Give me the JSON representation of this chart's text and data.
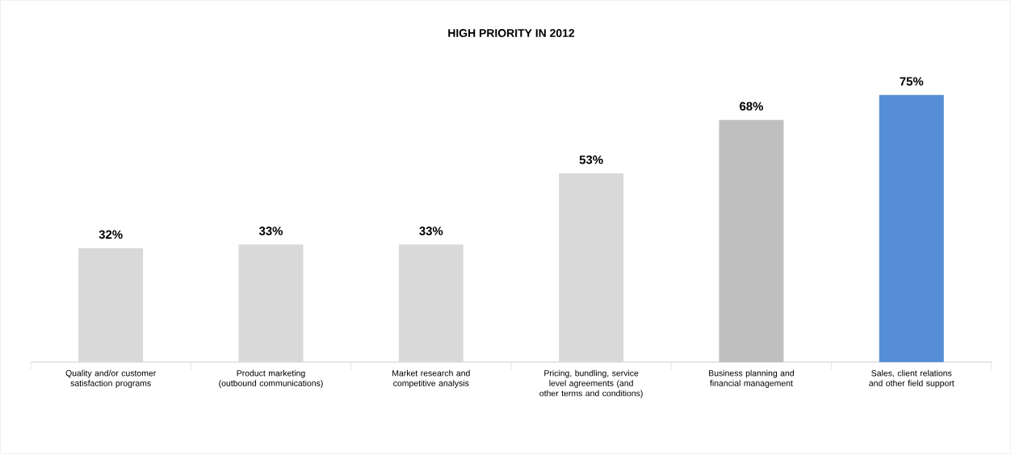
{
  "chart_data": {
    "type": "bar",
    "title": "HIGH PRIORITY IN 2012",
    "categories": [
      "Quality and/or customer satisfaction programs",
      "Product marketing (outbound communications)",
      "Market research and competitive analysis",
      "Pricing, bundling, service level agreements (and other terms and conditions)",
      "Business planning and financial management",
      "Sales, client relations and other field support"
    ],
    "values": [
      32,
      33,
      33,
      53,
      68,
      75
    ],
    "colors": [
      "#d9d9d9",
      "#d9d9d9",
      "#d9d9d9",
      "#d9d9d9",
      "#bfbfbf",
      "#558ed5"
    ],
    "value_labels": [
      "32%",
      "33%",
      "33%",
      "53%",
      "68%",
      "75%"
    ]
  }
}
